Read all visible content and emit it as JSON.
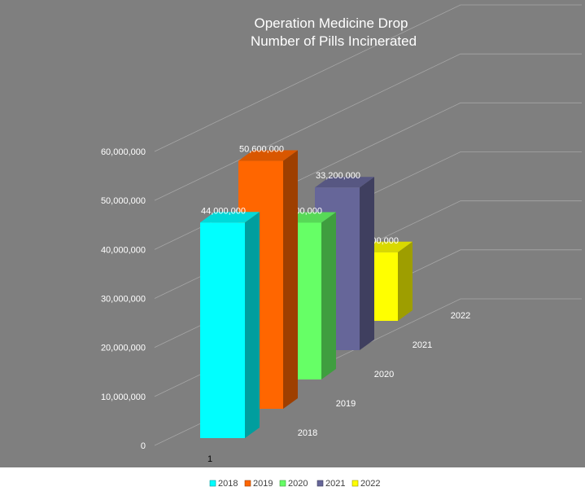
{
  "chart_data": {
    "type": "bar",
    "title": [
      "Operation Medicine Drop",
      "Number of Pills Incinerated"
    ],
    "categories": [
      "1"
    ],
    "series": [
      {
        "name": "2018",
        "values": [
          44000000
        ],
        "color": "#00ffff",
        "data_label": "44,000,000",
        "depth_label": "2018"
      },
      {
        "name": "2019",
        "values": [
          50600000
        ],
        "color": "#ff6600",
        "data_label": "50,600,000",
        "depth_label": "2019"
      },
      {
        "name": "2020",
        "values": [
          32000000
        ],
        "color": "#66ff66",
        "data_label": "32,000,000",
        "depth_label": "2020"
      },
      {
        "name": "2021",
        "values": [
          33200000
        ],
        "color": "#666699",
        "data_label": "33,200,000",
        "depth_label": "2021"
      },
      {
        "name": "2022",
        "values": [
          14000000
        ],
        "color": "#ffff00",
        "data_label": "14,000,000",
        "depth_label": "2022"
      }
    ],
    "y_ticks": [
      {
        "value": 0,
        "label": "0"
      },
      {
        "value": 10000000,
        "label": "10,000,000"
      },
      {
        "value": 20000000,
        "label": "20,000,000"
      },
      {
        "value": 30000000,
        "label": "30,000,000"
      },
      {
        "value": 40000000,
        "label": "40,000,000"
      },
      {
        "value": 50000000,
        "label": "50,000,000"
      },
      {
        "value": 60000000,
        "label": "60,000,000"
      }
    ],
    "ylim": [
      0,
      60000000
    ],
    "chart_style": "3d-column",
    "grid": true,
    "legend_position": "bottom",
    "plot_background": "#7f7f7f"
  }
}
